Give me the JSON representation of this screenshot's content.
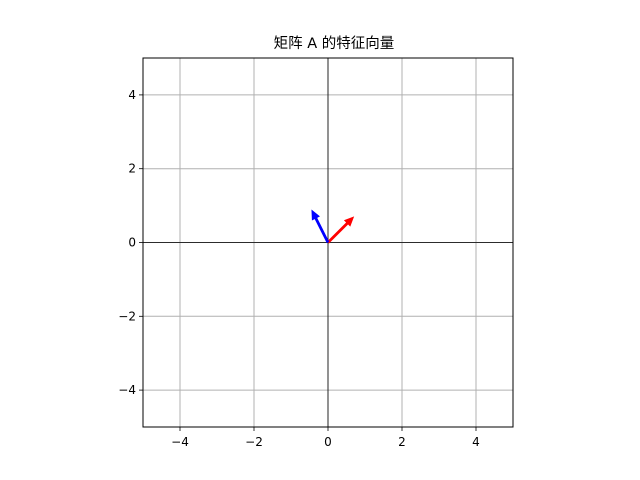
{
  "chart_data": {
    "type": "quiver",
    "title": "矩阵 A 的特征向量",
    "xlabel": "",
    "ylabel": "",
    "xlim": [
      -5,
      5
    ],
    "ylim": [
      -5,
      5
    ],
    "xticks": [
      -4,
      -2,
      0,
      2,
      4
    ],
    "yticks": [
      -4,
      -2,
      0,
      2,
      4
    ],
    "grid": true,
    "aspect": "equal",
    "axes_lines": true,
    "vectors": [
      {
        "origin": [
          0,
          0
        ],
        "x": 0.707,
        "y": 0.707,
        "color": "#ff0000"
      },
      {
        "origin": [
          0,
          0
        ],
        "x": -0.447,
        "y": 0.894,
        "color": "#0000ff"
      }
    ]
  }
}
